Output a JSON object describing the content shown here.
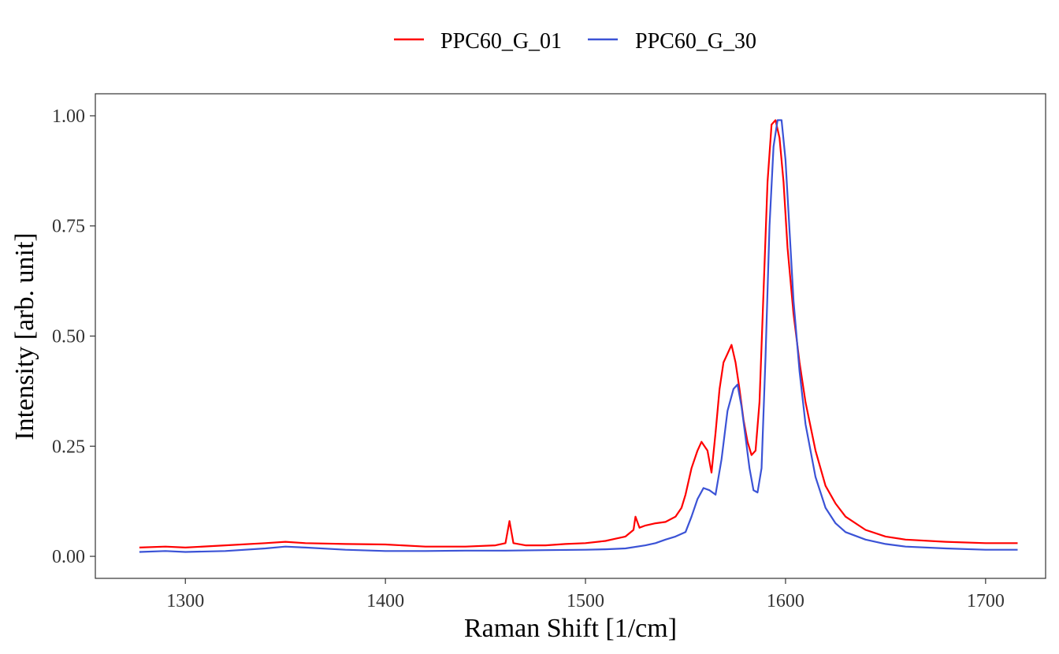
{
  "chart_data": {
    "type": "line",
    "xlabel": "Raman Shift [1/cm]",
    "ylabel": "Intensity [arb. unit]",
    "xlim": [
      1255,
      1730
    ],
    "ylim": [
      -0.05,
      1.05
    ],
    "x_ticks": [
      1300,
      1400,
      1500,
      1600,
      1700
    ],
    "y_ticks": [
      0.0,
      0.25,
      0.5,
      0.75,
      1.0
    ],
    "x_tick_labels": [
      "1300",
      "1400",
      "1500",
      "1600",
      "1700"
    ],
    "y_tick_labels": [
      "0.00",
      "0.25",
      "0.50",
      "0.75",
      "1.00"
    ],
    "grid": false,
    "legend_position": "top",
    "series": [
      {
        "name": "PPC60_G_01",
        "color": "#FF0000",
        "points": [
          [
            1277,
            0.02
          ],
          [
            1290,
            0.022
          ],
          [
            1300,
            0.02
          ],
          [
            1320,
            0.025
          ],
          [
            1340,
            0.03
          ],
          [
            1350,
            0.033
          ],
          [
            1360,
            0.03
          ],
          [
            1380,
            0.028
          ],
          [
            1400,
            0.027
          ],
          [
            1420,
            0.022
          ],
          [
            1440,
            0.022
          ],
          [
            1455,
            0.025
          ],
          [
            1460,
            0.03
          ],
          [
            1462,
            0.08
          ],
          [
            1464,
            0.03
          ],
          [
            1470,
            0.025
          ],
          [
            1480,
            0.025
          ],
          [
            1490,
            0.028
          ],
          [
            1500,
            0.03
          ],
          [
            1510,
            0.035
          ],
          [
            1515,
            0.04
          ],
          [
            1520,
            0.045
          ],
          [
            1524,
            0.06
          ],
          [
            1525,
            0.09
          ],
          [
            1527,
            0.065
          ],
          [
            1530,
            0.07
          ],
          [
            1535,
            0.075
          ],
          [
            1540,
            0.078
          ],
          [
            1545,
            0.09
          ],
          [
            1548,
            0.11
          ],
          [
            1550,
            0.14
          ],
          [
            1553,
            0.2
          ],
          [
            1556,
            0.24
          ],
          [
            1558,
            0.26
          ],
          [
            1561,
            0.24
          ],
          [
            1563,
            0.19
          ],
          [
            1565,
            0.28
          ],
          [
            1567,
            0.38
          ],
          [
            1569,
            0.44
          ],
          [
            1571,
            0.46
          ],
          [
            1573,
            0.48
          ],
          [
            1575,
            0.44
          ],
          [
            1577,
            0.38
          ],
          [
            1579,
            0.31
          ],
          [
            1581,
            0.26
          ],
          [
            1583,
            0.23
          ],
          [
            1585,
            0.24
          ],
          [
            1587,
            0.35
          ],
          [
            1589,
            0.6
          ],
          [
            1591,
            0.85
          ],
          [
            1593,
            0.98
          ],
          [
            1595,
            0.99
          ],
          [
            1597,
            0.95
          ],
          [
            1599,
            0.85
          ],
          [
            1601,
            0.7
          ],
          [
            1604,
            0.55
          ],
          [
            1607,
            0.44
          ],
          [
            1610,
            0.35
          ],
          [
            1615,
            0.24
          ],
          [
            1620,
            0.16
          ],
          [
            1625,
            0.12
          ],
          [
            1630,
            0.09
          ],
          [
            1640,
            0.06
          ],
          [
            1650,
            0.045
          ],
          [
            1660,
            0.038
          ],
          [
            1680,
            0.033
          ],
          [
            1700,
            0.03
          ],
          [
            1716,
            0.03
          ]
        ]
      },
      {
        "name": "PPC60_G_30",
        "color": "#3B53D6",
        "points": [
          [
            1277,
            0.01
          ],
          [
            1290,
            0.012
          ],
          [
            1300,
            0.01
          ],
          [
            1320,
            0.012
          ],
          [
            1340,
            0.018
          ],
          [
            1350,
            0.022
          ],
          [
            1360,
            0.02
          ],
          [
            1380,
            0.015
          ],
          [
            1400,
            0.012
          ],
          [
            1420,
            0.012
          ],
          [
            1440,
            0.013
          ],
          [
            1460,
            0.013
          ],
          [
            1480,
            0.014
          ],
          [
            1500,
            0.015
          ],
          [
            1510,
            0.016
          ],
          [
            1520,
            0.018
          ],
          [
            1530,
            0.025
          ],
          [
            1535,
            0.03
          ],
          [
            1540,
            0.038
          ],
          [
            1545,
            0.045
          ],
          [
            1550,
            0.055
          ],
          [
            1553,
            0.09
          ],
          [
            1556,
            0.13
          ],
          [
            1559,
            0.155
          ],
          [
            1562,
            0.15
          ],
          [
            1565,
            0.14
          ],
          [
            1568,
            0.22
          ],
          [
            1571,
            0.33
          ],
          [
            1574,
            0.38
          ],
          [
            1576,
            0.39
          ],
          [
            1578,
            0.34
          ],
          [
            1580,
            0.27
          ],
          [
            1582,
            0.2
          ],
          [
            1584,
            0.15
          ],
          [
            1586,
            0.145
          ],
          [
            1588,
            0.2
          ],
          [
            1590,
            0.45
          ],
          [
            1592,
            0.75
          ],
          [
            1594,
            0.93
          ],
          [
            1596,
            0.99
          ],
          [
            1598,
            0.99
          ],
          [
            1600,
            0.9
          ],
          [
            1602,
            0.74
          ],
          [
            1604,
            0.58
          ],
          [
            1607,
            0.42
          ],
          [
            1610,
            0.3
          ],
          [
            1615,
            0.18
          ],
          [
            1620,
            0.11
          ],
          [
            1625,
            0.075
          ],
          [
            1630,
            0.055
          ],
          [
            1640,
            0.038
          ],
          [
            1650,
            0.028
          ],
          [
            1660,
            0.022
          ],
          [
            1680,
            0.018
          ],
          [
            1700,
            0.015
          ],
          [
            1716,
            0.015
          ]
        ]
      }
    ]
  }
}
